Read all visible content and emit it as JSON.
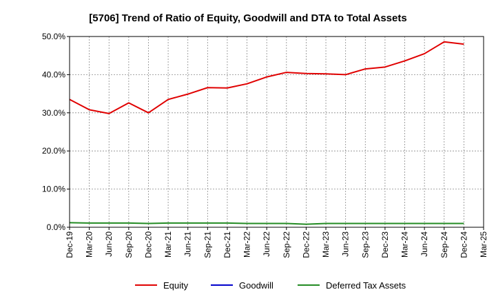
{
  "chart_data": {
    "type": "line",
    "title": "[5706]  Trend of Ratio of Equity, Goodwill and DTA to Total Assets",
    "xlabel": "",
    "ylabel": "",
    "ylim": [
      0,
      50
    ],
    "yticks": [
      0,
      10,
      20,
      30,
      40,
      50
    ],
    "ytick_labels": [
      "0.0%",
      "10.0%",
      "20.0%",
      "30.0%",
      "40.0%",
      "50.0%"
    ],
    "categories": [
      "Dec-19",
      "Mar-20",
      "Jun-20",
      "Sep-20",
      "Dec-20",
      "Mar-21",
      "Jun-21",
      "Sep-21",
      "Dec-21",
      "Mar-22",
      "Jun-22",
      "Sep-22",
      "Dec-22",
      "Mar-23",
      "Jun-23",
      "Sep-23",
      "Dec-23",
      "Mar-24",
      "Jun-24",
      "Sep-24",
      "Dec-24",
      "Mar-25"
    ],
    "legend_position": "bottom",
    "grid": true,
    "series": [
      {
        "name": "Equity",
        "color": "#e00000",
        "values": [
          33.5,
          30.8,
          29.8,
          32.6,
          30.0,
          33.5,
          34.9,
          36.6,
          36.5,
          37.6,
          39.4,
          40.6,
          40.3,
          40.2,
          40.0,
          41.5,
          42.0,
          43.6,
          45.5,
          48.6,
          48.0,
          null
        ]
      },
      {
        "name": "Goodwill",
        "color": "#0000cc",
        "values": [
          null,
          null,
          null,
          null,
          null,
          null,
          null,
          null,
          null,
          null,
          null,
          null,
          null,
          null,
          null,
          null,
          null,
          null,
          null,
          null,
          null,
          null
        ]
      },
      {
        "name": "Deferred Tax Assets",
        "color": "#228b22",
        "values": [
          1.2,
          1.1,
          1.1,
          1.1,
          1.0,
          1.1,
          1.1,
          1.1,
          1.1,
          1.0,
          1.0,
          1.0,
          0.8,
          1.0,
          1.0,
          1.0,
          1.0,
          1.0,
          1.0,
          1.0,
          1.0,
          null
        ]
      }
    ]
  }
}
